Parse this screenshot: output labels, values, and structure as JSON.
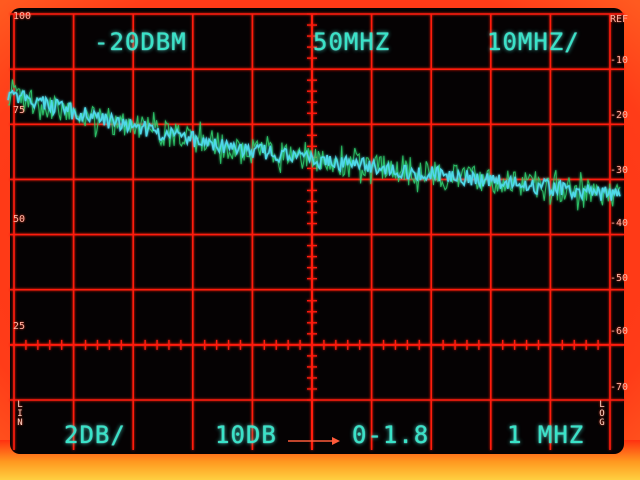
{
  "readouts": {
    "reference_level": "-20DBM",
    "center_frequency": "50MHZ",
    "frequency_span": "10MHZ/",
    "vertical_scale": "2DB/",
    "input_attenuation": "10DB",
    "scan_range": "0-1.8",
    "resolution_bandwidth": "1 MHZ"
  },
  "left_scale": [
    "100",
    "75",
    "50",
    "25"
  ],
  "right_scale": [
    "REF",
    "-10",
    "-20",
    "-30",
    "-40",
    "-50",
    "-60",
    "-70"
  ],
  "mode_labels": {
    "left": "LIN",
    "right": "LOG"
  },
  "colors": {
    "graticule": "#ff1a10",
    "bezel": "#ff3a1a",
    "trace": "#4fd8e8",
    "trace_noise": "#2fd070",
    "text": "#39e3c8"
  },
  "trace": {
    "description_units": "dB divisions from top (0 = top line, 8 = bottom line)",
    "x_start_div": 0,
    "x_end_div": 10,
    "level_start_div": 1.45,
    "level_mid_div": 2.65,
    "level_end_div": 3.3
  }
}
